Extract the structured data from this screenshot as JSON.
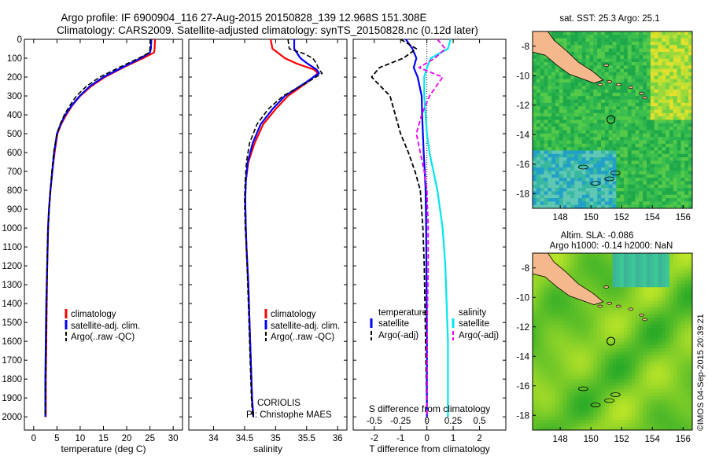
{
  "header": {
    "line1": "Argo profile: IF 6900904_116 27-Aug-2015 20150828_139 12.968S 151.308E",
    "line2": "Climatology: CARS2009. Satellite-adjusted climatology: synTS_20150828.nc (0.12d later)"
  },
  "colors": {
    "climatology": "#ff0000",
    "satellite": "#0000ff",
    "argo": "#000000",
    "sal_satellite": "#00e5ee",
    "sal_argo": "#ee00ee",
    "land": "#f5b88c"
  },
  "legends": {
    "profile": [
      "climatology",
      "satellite-adj. clim.",
      "Argo(..raw -QC)"
    ],
    "diff_temperature_heading": "temperature",
    "diff_salinity_heading": "salinity",
    "diff_temperature": [
      "satellite",
      "Argo(-adj)"
    ],
    "diff_salinity": [
      "satellite",
      "Argo(-adj)"
    ]
  },
  "annotations": {
    "source": "CORIOLIS",
    "pi": "PI: Christophe MAES",
    "stamp": "©IMOS 04-Sep-2015 20:39:21"
  },
  "maps": {
    "sst_title": "sat. SST: 25.3 Argo: 25.1",
    "sla_title1": "Altim. SLA: -0.086",
    "sla_title2": "Argo h1000: -0.14 h2000: NaN",
    "lat_ticks": [
      "-8",
      "-10",
      "-12",
      "-14",
      "-16",
      "-18"
    ],
    "lon_ticks": [
      "148",
      "150",
      "152",
      "154",
      "156"
    ],
    "argo_position": {
      "lon": 151.3,
      "lat": -12.97
    }
  },
  "chart_data": [
    {
      "type": "line",
      "xlabel": "temperature (deg C)",
      "ylim": [
        2070,
        0
      ],
      "xlim": [
        -2,
        32
      ],
      "xticks": [
        "0",
        "5",
        "10",
        "15",
        "20",
        "25",
        "30"
      ],
      "yticks": [
        "0",
        "100",
        "200",
        "300",
        "400",
        "500",
        "600",
        "700",
        "800",
        "900",
        "1000",
        "1100",
        "1200",
        "1300",
        "1400",
        "1500",
        "1600",
        "1700",
        "1800",
        "1900",
        "2000"
      ],
      "series": [
        {
          "name": "climatology",
          "x": [
            26.1,
            26.0,
            25.9,
            23.5,
            19.2,
            15.3,
            12.3,
            10.0,
            8.3,
            7.0,
            5.9,
            5.1,
            4.5,
            4.0,
            3.6,
            3.3,
            3.1,
            2.9,
            2.8,
            2.7,
            2.6,
            2.6
          ],
          "y": [
            0,
            50,
            70,
            100,
            150,
            200,
            250,
            300,
            350,
            400,
            450,
            500,
            600,
            700,
            800,
            900,
            1000,
            1200,
            1400,
            1600,
            1800,
            2000
          ]
        },
        {
          "name": "satellite-adj. clim.",
          "x": [
            25.3,
            25.2,
            25.0,
            23.0,
            19.0,
            15.0,
            12.0,
            9.9,
            8.2,
            6.8,
            5.8,
            5.0,
            4.4,
            4.0,
            3.6,
            3.3,
            3.1,
            2.9,
            2.7,
            2.6,
            2.5,
            2.5
          ],
          "y": [
            0,
            50,
            70,
            100,
            150,
            200,
            250,
            300,
            350,
            400,
            450,
            500,
            600,
            700,
            800,
            900,
            1000,
            1200,
            1400,
            1600,
            1800,
            2000
          ]
        },
        {
          "name": "Argo(..raw -QC)",
          "x": [
            25.1,
            25.0,
            24.9,
            22.6,
            18.3,
            14.2,
            11.3,
            9.2,
            7.8,
            6.6,
            5.7,
            5.0,
            4.3,
            3.9,
            3.6,
            3.3,
            3.1,
            2.9,
            2.8,
            2.7,
            2.6,
            2.5
          ],
          "y": [
            0,
            50,
            70,
            100,
            150,
            200,
            250,
            300,
            350,
            400,
            450,
            500,
            600,
            700,
            800,
            900,
            1000,
            1200,
            1400,
            1600,
            1800,
            2000
          ]
        }
      ]
    },
    {
      "type": "line",
      "xlabel": "salinity",
      "ylim": [
        2070,
        0
      ],
      "xlim": [
        33.6,
        36.15
      ],
      "xticks": [
        "34",
        "34.5",
        "35",
        "35.5",
        "36"
      ],
      "series": [
        {
          "name": "climatology",
          "x": [
            34.92,
            34.95,
            35.05,
            35.15,
            35.35,
            35.62,
            35.68,
            35.5,
            35.2,
            35.0,
            34.8,
            34.66,
            34.56,
            34.52,
            34.51,
            34.52,
            34.53,
            34.56,
            34.58,
            34.6,
            34.62,
            34.64
          ],
          "y": [
            0,
            50,
            75,
            100,
            130,
            160,
            180,
            230,
            300,
            370,
            450,
            550,
            650,
            750,
            850,
            1000,
            1100,
            1300,
            1500,
            1700,
            1900,
            2000
          ]
        },
        {
          "name": "satellite-adj. clim.",
          "x": [
            35.3,
            35.3,
            35.35,
            35.4,
            35.52,
            35.66,
            35.7,
            35.48,
            35.15,
            34.95,
            34.76,
            34.63,
            34.55,
            34.52,
            34.51,
            34.52,
            34.53,
            34.56,
            34.58,
            34.6,
            34.62,
            34.64
          ],
          "y": [
            0,
            50,
            75,
            100,
            130,
            160,
            180,
            230,
            300,
            370,
            450,
            550,
            650,
            750,
            850,
            1000,
            1100,
            1300,
            1500,
            1700,
            1900,
            2000
          ]
        },
        {
          "name": "Argo(..raw -QC)",
          "x": [
            35.2,
            35.22,
            35.45,
            35.6,
            35.66,
            35.7,
            35.75,
            35.5,
            35.12,
            34.88,
            34.7,
            34.58,
            34.53,
            34.51,
            34.5,
            34.51,
            34.53,
            34.55,
            34.57,
            34.59,
            34.61,
            34.63
          ],
          "y": [
            0,
            50,
            75,
            100,
            130,
            160,
            180,
            230,
            300,
            370,
            450,
            550,
            650,
            750,
            850,
            1000,
            1100,
            1300,
            1500,
            1700,
            1900,
            2000
          ]
        }
      ]
    },
    {
      "type": "line",
      "xlabel": "T difference from climatology",
      "xlabel2": "S difference from climatology",
      "ylim": [
        2070,
        0
      ],
      "xlim": [
        -2.8,
        3.0
      ],
      "xticks": [
        "-2",
        "-1",
        "0",
        "1",
        "2"
      ],
      "xticks_salinity": [
        "-0.5",
        "-0.25",
        "0",
        "0.25",
        "0.5"
      ],
      "series": [
        {
          "name": "temperature satellite",
          "x": [
            -0.8,
            -0.55,
            -0.4,
            -0.5,
            -0.35,
            -0.2,
            -0.18,
            -0.15,
            -0.12,
            -0.08,
            -0.05,
            -0.03,
            -0.02,
            0.0,
            0.0
          ],
          "y": [
            0,
            50,
            100,
            150,
            200,
            300,
            400,
            500,
            600,
            700,
            800,
            1000,
            1200,
            1600,
            2000
          ]
        },
        {
          "name": "temperature Argo(-adj)",
          "x": [
            -1.0,
            -0.4,
            -0.9,
            -1.8,
            -2.1,
            -1.4,
            -1.2,
            -1.0,
            -0.7,
            -0.45,
            -0.25,
            -0.15,
            -0.1,
            -0.05,
            0.0
          ],
          "y": [
            0,
            50,
            100,
            150,
            200,
            300,
            400,
            500,
            600,
            700,
            800,
            1000,
            1200,
            1600,
            2000
          ]
        },
        {
          "name": "salinity satellite",
          "x": [
            0.9,
            0.8,
            0.15,
            0.0,
            -0.1,
            -0.1,
            -0.05,
            0.0,
            0.1,
            0.25,
            0.4,
            0.6,
            0.7,
            0.8,
            0.8
          ],
          "y": [
            0,
            50,
            100,
            150,
            200,
            300,
            400,
            500,
            600,
            700,
            800,
            1000,
            1200,
            1600,
            2000
          ]
        },
        {
          "name": "salinity Argo(-adj)",
          "x": [
            0.4,
            0.7,
            0.3,
            -0.3,
            0.6,
            0.1,
            -0.2,
            -0.4,
            -0.25,
            -0.1,
            0.0,
            0.05,
            0.05,
            0.0,
            0.0
          ],
          "y": [
            0,
            50,
            100,
            150,
            200,
            300,
            400,
            500,
            600,
            700,
            800,
            1000,
            1200,
            1600,
            2000
          ]
        }
      ]
    }
  ]
}
